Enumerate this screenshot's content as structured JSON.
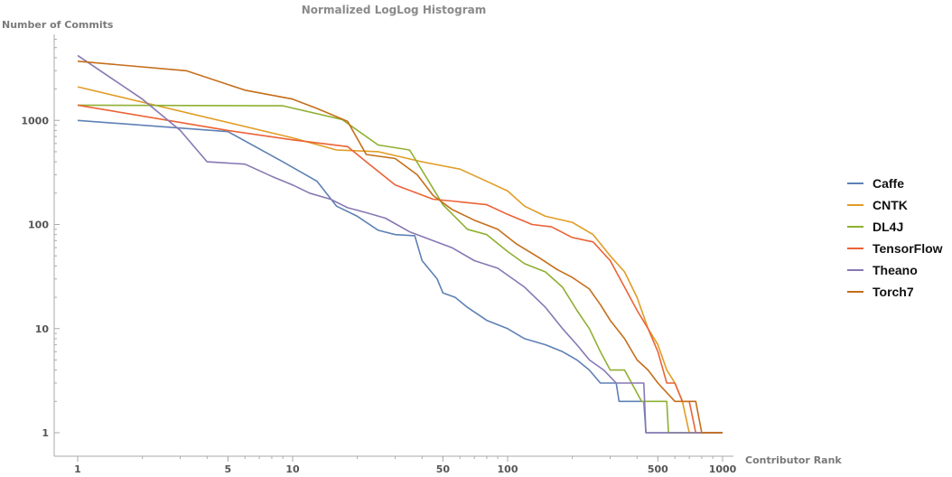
{
  "chart_data": {
    "type": "line",
    "title": "Normalized LogLog Histogram",
    "xlabel": "Contributor Rank",
    "ylabel": "Number of Commits",
    "xscale": "log",
    "yscale": "log",
    "xlim": [
      0.8,
      1100
    ],
    "ylim": [
      0.75,
      9000
    ],
    "x_ticks": [
      1,
      5,
      10,
      50,
      100,
      500,
      1000
    ],
    "x_tick_labels": [
      "1",
      "5",
      "10",
      "50",
      "100",
      "500",
      "1000"
    ],
    "y_ticks": [
      1,
      10,
      100,
      1000
    ],
    "y_tick_labels": [
      "1",
      "10",
      "100",
      "1000"
    ],
    "legend_position": "right",
    "series": [
      {
        "name": "Caffe",
        "color": "#5e81b5",
        "points": [
          [
            1,
            1000
          ],
          [
            5,
            780
          ],
          [
            9,
            400
          ],
          [
            13,
            260
          ],
          [
            16,
            150
          ],
          [
            20,
            120
          ],
          [
            25,
            88
          ],
          [
            30,
            80
          ],
          [
            37,
            78
          ],
          [
            40,
            45
          ],
          [
            47,
            30
          ],
          [
            50,
            22
          ],
          [
            57,
            20
          ],
          [
            65,
            16
          ],
          [
            80,
            12
          ],
          [
            100,
            10
          ],
          [
            120,
            8
          ],
          [
            150,
            7
          ],
          [
            180,
            6
          ],
          [
            210,
            5
          ],
          [
            240,
            4
          ],
          [
            270,
            3
          ],
          [
            320,
            3
          ],
          [
            330,
            2
          ],
          [
            430,
            2
          ],
          [
            440,
            1
          ],
          [
            1000,
            1
          ]
        ]
      },
      {
        "name": "CNTK",
        "color": "#e19c24",
        "points": [
          [
            1,
            2100
          ],
          [
            10,
            680
          ],
          [
            16,
            520
          ],
          [
            25,
            500
          ],
          [
            40,
            400
          ],
          [
            60,
            340
          ],
          [
            80,
            260
          ],
          [
            100,
            210
          ],
          [
            120,
            150
          ],
          [
            150,
            120
          ],
          [
            200,
            105
          ],
          [
            250,
            80
          ],
          [
            300,
            50
          ],
          [
            350,
            35
          ],
          [
            400,
            20
          ],
          [
            450,
            10
          ],
          [
            500,
            7
          ],
          [
            550,
            4
          ],
          [
            600,
            3
          ],
          [
            650,
            2
          ],
          [
            700,
            1
          ],
          [
            1000,
            1
          ]
        ]
      },
      {
        "name": "DL4J",
        "color": "#8fb032",
        "points": [
          [
            1,
            1400
          ],
          [
            9,
            1380
          ],
          [
            17,
            1020
          ],
          [
            25,
            580
          ],
          [
            35,
            520
          ],
          [
            50,
            155
          ],
          [
            65,
            90
          ],
          [
            80,
            80
          ],
          [
            100,
            55
          ],
          [
            120,
            42
          ],
          [
            150,
            35
          ],
          [
            180,
            25
          ],
          [
            210,
            15
          ],
          [
            240,
            10
          ],
          [
            270,
            6
          ],
          [
            300,
            4
          ],
          [
            350,
            4
          ],
          [
            420,
            2
          ],
          [
            550,
            2
          ],
          [
            560,
            1
          ],
          [
            1000,
            1
          ]
        ]
      },
      {
        "name": "TensorFlow",
        "color": "#eb6235",
        "points": [
          [
            1,
            1400
          ],
          [
            5,
            800
          ],
          [
            10,
            650
          ],
          [
            18,
            560
          ],
          [
            22,
            400
          ],
          [
            30,
            240
          ],
          [
            45,
            175
          ],
          [
            60,
            165
          ],
          [
            80,
            155
          ],
          [
            100,
            125
          ],
          [
            130,
            100
          ],
          [
            160,
            95
          ],
          [
            200,
            75
          ],
          [
            250,
            68
          ],
          [
            300,
            45
          ],
          [
            350,
            25
          ],
          [
            400,
            15
          ],
          [
            450,
            10
          ],
          [
            500,
            6
          ],
          [
            550,
            3
          ],
          [
            600,
            3
          ],
          [
            650,
            2
          ],
          [
            700,
            2
          ],
          [
            750,
            1
          ],
          [
            1000,
            1
          ]
        ]
      },
      {
        "name": "Theano",
        "color": "#8778b3",
        "points": [
          [
            1,
            4200
          ],
          [
            2,
            1600
          ],
          [
            3,
            800
          ],
          [
            4,
            400
          ],
          [
            6,
            380
          ],
          [
            8,
            290
          ],
          [
            10,
            240
          ],
          [
            12,
            200
          ],
          [
            15,
            175
          ],
          [
            18,
            145
          ],
          [
            22,
            130
          ],
          [
            27,
            115
          ],
          [
            35,
            85
          ],
          [
            45,
            70
          ],
          [
            55,
            60
          ],
          [
            70,
            45
          ],
          [
            90,
            38
          ],
          [
            120,
            25
          ],
          [
            150,
            16
          ],
          [
            180,
            10
          ],
          [
            210,
            7
          ],
          [
            240,
            5
          ],
          [
            280,
            4
          ],
          [
            320,
            3
          ],
          [
            430,
            3
          ],
          [
            440,
            1
          ],
          [
            1000,
            1
          ]
        ]
      },
      {
        "name": "Torch7",
        "color": "#c56e1a",
        "points": [
          [
            1,
            3700
          ],
          [
            3.2,
            3000
          ],
          [
            6,
            1950
          ],
          [
            10,
            1600
          ],
          [
            13,
            1300
          ],
          [
            18,
            980
          ],
          [
            22,
            470
          ],
          [
            30,
            430
          ],
          [
            38,
            300
          ],
          [
            45,
            190
          ],
          [
            55,
            140
          ],
          [
            70,
            110
          ],
          [
            90,
            90
          ],
          [
            110,
            65
          ],
          [
            140,
            48
          ],
          [
            170,
            37
          ],
          [
            200,
            31
          ],
          [
            240,
            24
          ],
          [
            270,
            17
          ],
          [
            300,
            12
          ],
          [
            350,
            8
          ],
          [
            400,
            5
          ],
          [
            450,
            4
          ],
          [
            500,
            3
          ],
          [
            600,
            2
          ],
          [
            750,
            2
          ],
          [
            800,
            1
          ],
          [
            1000,
            1
          ]
        ]
      }
    ]
  }
}
